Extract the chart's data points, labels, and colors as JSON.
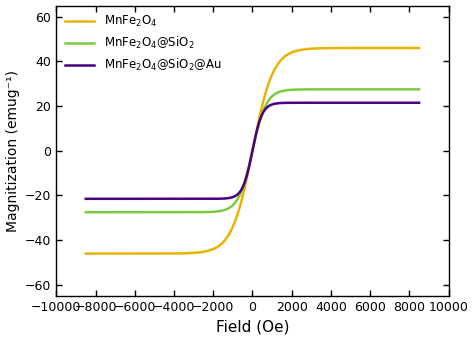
{
  "xlabel": "Field (Oe)",
  "ylabel": "Magnitization (emug⁻¹)",
  "xlim": [
    -10000,
    10000
  ],
  "ylim": [
    -65,
    65
  ],
  "xticks": [
    -10000,
    -8000,
    -6000,
    -4000,
    -2000,
    0,
    2000,
    4000,
    6000,
    8000,
    10000
  ],
  "yticks": [
    -60,
    -40,
    -20,
    0,
    20,
    40,
    60
  ],
  "curves": [
    {
      "label": "MnFe$_2$O$_4$",
      "color": "#e8b400",
      "sat": 46.0,
      "steepness": 0.00095,
      "shift": 0
    },
    {
      "label": "MnFe$_2$O$_4$@SiO$_2$",
      "color": "#7dc940",
      "sat": 27.5,
      "steepness": 0.0014,
      "shift": 0
    },
    {
      "label": "MnFe$_2$O$_4$@SiO$_2$@Au",
      "color": "#4a0080",
      "sat": 21.5,
      "steepness": 0.002,
      "shift": 0
    }
  ],
  "legend_loc": "upper left",
  "background_color": "#ffffff",
  "linewidth": 1.8,
  "figsize": [
    4.74,
    3.4
  ],
  "dpi": 100
}
